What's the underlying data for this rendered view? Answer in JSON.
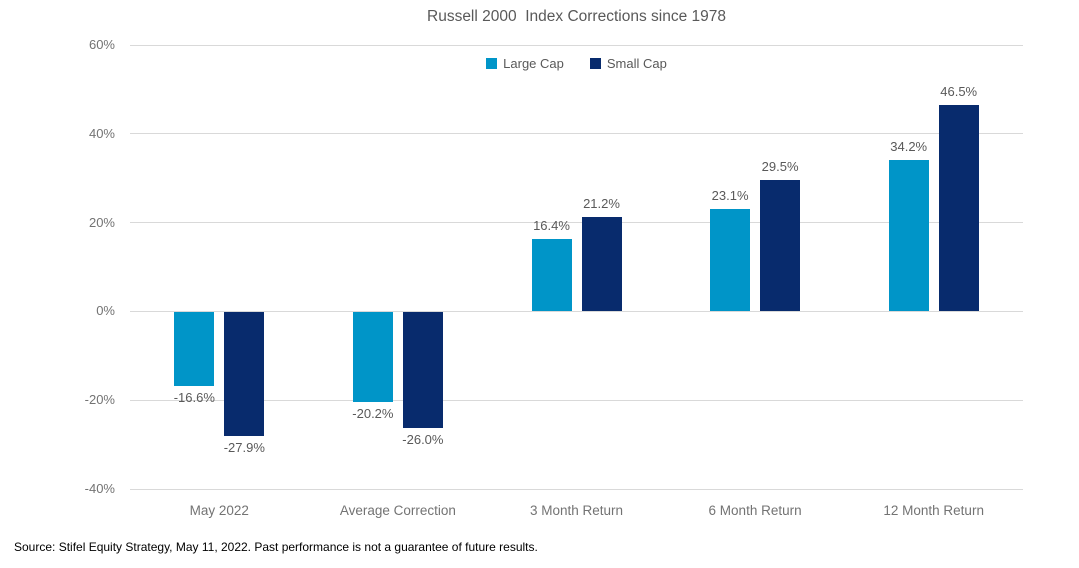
{
  "title": "Russell 2000  Index Corrections since 1978",
  "source_note": "Source: Stifel Equity Strategy, May 11, 2022. Past performance is not a guarantee of future results.",
  "colors": {
    "large_cap": "#0095C8",
    "small_cap": "#082B6D",
    "gridline": "#D9D9D9",
    "title_text": "#595959",
    "axis_text": "#737373",
    "label_text": "#595959",
    "background": "#FFFFFF"
  },
  "chart_data": {
    "type": "bar",
    "title": "Russell 2000  Index Corrections since 1978",
    "categories": [
      "May 2022",
      "Average Correction",
      "3 Month Return",
      "6 Month Return",
      "12 Month Return"
    ],
    "series": [
      {
        "name": "Large Cap",
        "color": "#0095C8",
        "values": [
          -16.6,
          -20.2,
          16.4,
          23.1,
          34.2
        ],
        "labels": [
          "-16.6%",
          "-20.2%",
          "16.4%",
          "23.1%",
          "34.2%"
        ]
      },
      {
        "name": "Small Cap",
        "color": "#082B6D",
        "values": [
          -27.9,
          -26.0,
          21.2,
          29.5,
          46.5
        ],
        "labels": [
          "-27.9%",
          "-26.0%",
          "21.2%",
          "29.5%",
          "46.5%"
        ]
      }
    ],
    "xlabel": "",
    "ylabel": "",
    "ylim": [
      -40,
      60
    ],
    "yticks": [
      {
        "value": 60,
        "label": "60%"
      },
      {
        "value": 40,
        "label": "40%"
      },
      {
        "value": 20,
        "label": "20%"
      },
      {
        "value": 0,
        "label": "0%"
      },
      {
        "value": -20,
        "label": "-20%"
      },
      {
        "value": -40,
        "label": "-40%"
      }
    ],
    "grid": true,
    "legend_position": "top-center",
    "data_labels": true
  }
}
